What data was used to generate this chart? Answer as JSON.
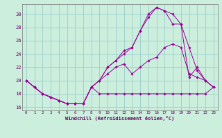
{
  "xlabel": "Windchill (Refroidissement éolien,°C)",
  "bg_color": "#cceedd",
  "grid_color": "#99cccc",
  "line_color": "#990099",
  "xlim": [
    -0.5,
    23.5
  ],
  "ylim": [
    15.5,
    31.5
  ],
  "yticks": [
    16,
    18,
    20,
    22,
    24,
    26,
    28,
    30
  ],
  "xticks": [
    0,
    1,
    2,
    3,
    4,
    5,
    6,
    7,
    8,
    9,
    10,
    11,
    12,
    13,
    14,
    15,
    16,
    17,
    18,
    19,
    20,
    21,
    22,
    23
  ],
  "series": [
    {
      "x": [
        0,
        1,
        2,
        3,
        4,
        5,
        6,
        7,
        8,
        9,
        10,
        11,
        12,
        13,
        14,
        15,
        16,
        17,
        18,
        19,
        20,
        21,
        22,
        23
      ],
      "y": [
        20,
        19,
        18,
        17.5,
        17,
        16.5,
        16.5,
        16.5,
        19,
        18,
        18,
        18,
        18,
        18,
        18,
        18,
        18,
        18,
        18,
        18,
        18,
        18,
        18,
        19
      ]
    },
    {
      "x": [
        0,
        1,
        2,
        3,
        4,
        5,
        6,
        7,
        8,
        9,
        10,
        11,
        12,
        13,
        14,
        15,
        16,
        17,
        18,
        19,
        20,
        21,
        22,
        23
      ],
      "y": [
        20,
        19,
        18,
        17.5,
        17,
        16.5,
        16.5,
        16.5,
        19,
        20,
        21,
        22,
        22.5,
        21,
        22,
        23,
        23.5,
        25,
        25.5,
        25,
        21,
        20.5,
        20,
        19
      ]
    },
    {
      "x": [
        0,
        1,
        2,
        3,
        4,
        5,
        6,
        7,
        8,
        9,
        10,
        11,
        12,
        13,
        14,
        15,
        16,
        17,
        18,
        19,
        20,
        21,
        22,
        23
      ],
      "y": [
        20,
        19,
        18,
        17.5,
        17,
        16.5,
        16.5,
        16.5,
        19,
        20,
        22,
        23,
        24.5,
        25,
        27.5,
        29.5,
        31,
        30.5,
        30,
        28.5,
        25,
        21.5,
        20,
        19
      ]
    },
    {
      "x": [
        0,
        1,
        2,
        3,
        4,
        5,
        6,
        7,
        8,
        9,
        10,
        11,
        12,
        13,
        14,
        15,
        16,
        17,
        18,
        19,
        20,
        21,
        22,
        23
      ],
      "y": [
        20,
        19,
        18,
        17.5,
        17,
        16.5,
        16.5,
        16.5,
        19,
        20,
        22,
        23,
        24,
        25,
        27.5,
        30,
        31,
        30.5,
        28.5,
        28.5,
        20.5,
        22,
        20,
        19
      ]
    }
  ]
}
